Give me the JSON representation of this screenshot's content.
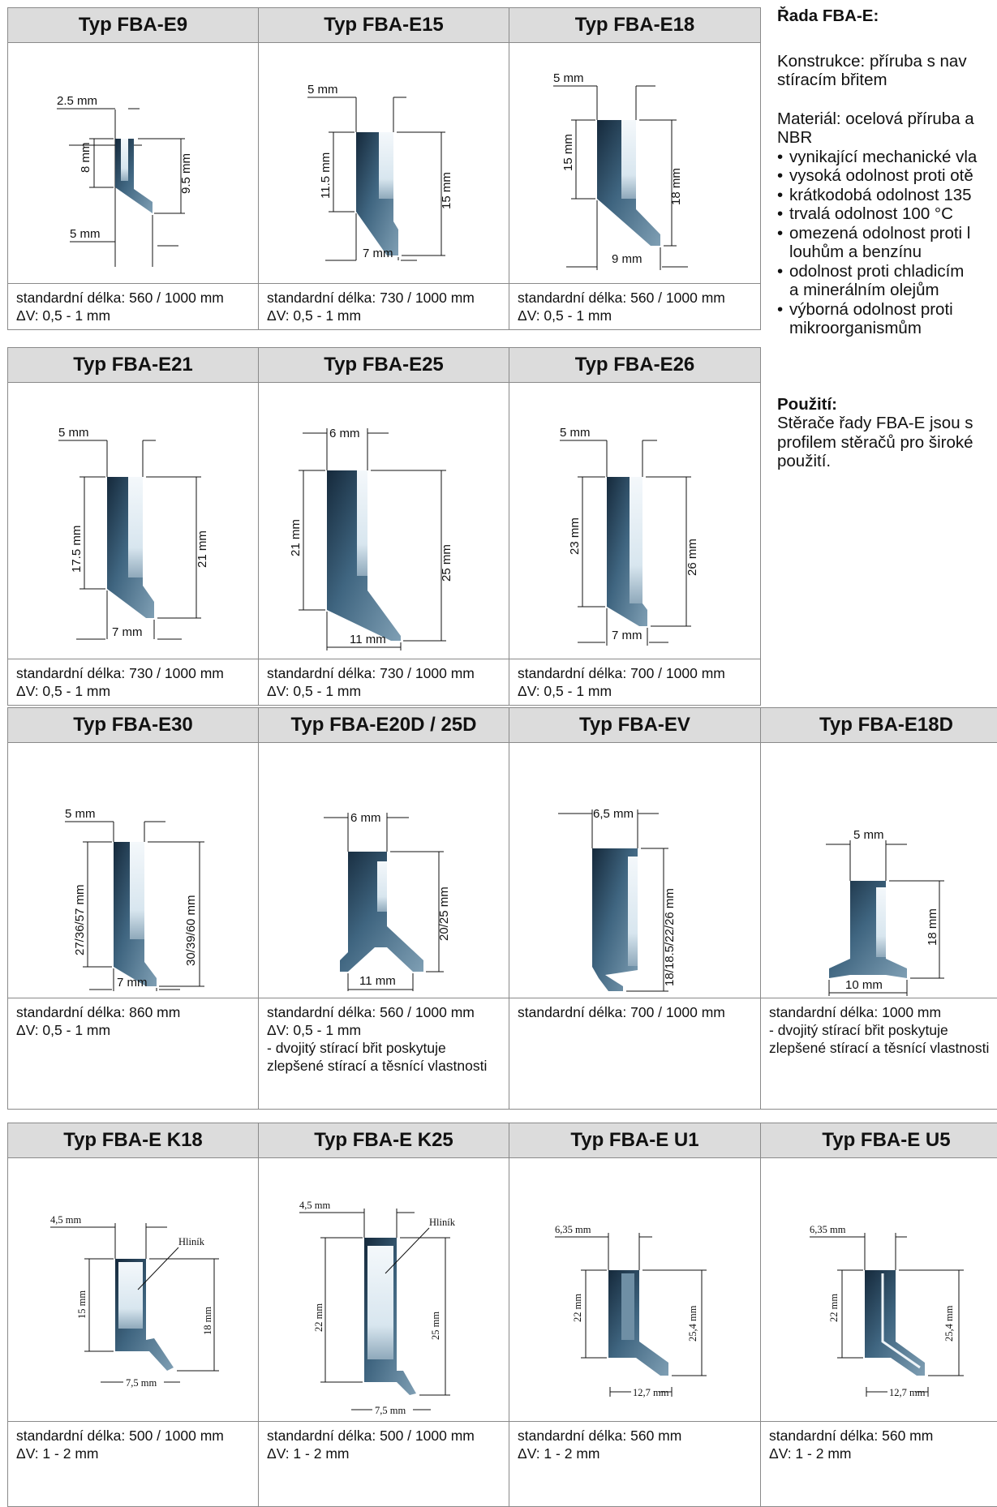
{
  "sidebar": {
    "heading": "Řada FBA-E:",
    "construction": [
      "Konstrukce: příruba s nav",
      "stíracím břitem"
    ],
    "material": [
      "Materiál: ocelová příruba a",
      "NBR"
    ],
    "properties": [
      [
        "vynikající mechanické vla"
      ],
      [
        "vysoká odolnost proti otě"
      ],
      [
        "krátkodobá odolnost 135"
      ],
      [
        "trvalá odolnost 100 °C"
      ],
      [
        "omezená odolnost proti l",
        "louhům a benzínu"
      ],
      [
        "odolnost proti chladicím",
        "a minerálním olejům"
      ],
      [
        "výborná odolnost proti",
        "mikroorganismům"
      ]
    ],
    "usage_heading": "Použití:",
    "usage": [
      "Stěrače řady FBA-E jsou s",
      "profilem stěračů pro široké",
      "použití."
    ]
  },
  "cells": [
    {
      "name": "Typ FBA-E9",
      "length": "standardní délka: 560 / 1000 mm",
      "dv": "ΔV:  0,5 - 1 mm",
      "dims": {
        "top": "2.5 mm",
        "left": "8 mm",
        "right": "9.5 mm",
        "bottom": "5 mm"
      }
    },
    {
      "name": "Typ FBA-E15",
      "length": "standardní délka: 730 / 1000 mm",
      "dv": "ΔV:  0,5 - 1 mm",
      "dims": {
        "top": "5 mm",
        "left": "11.5 mm",
        "right": "15 mm",
        "bottom": "7 mm"
      }
    },
    {
      "name": "Typ FBA-E18",
      "length": "standardní délka: 560 / 1000 mm",
      "dv": "ΔV:  0,5 - 1 mm",
      "dims": {
        "top": "5 mm",
        "left": "15 mm",
        "right": "18 mm",
        "bottom": "9 mm"
      }
    },
    {
      "name": "Typ FBA-E21",
      "length": "standardní délka: 730 / 1000 mm",
      "dv": "ΔV:  0,5 - 1 mm",
      "dims": {
        "top": "5 mm",
        "left": "17.5 mm",
        "right": "21 mm",
        "bottom": "7 mm"
      }
    },
    {
      "name": "Typ FBA-E25",
      "length": "standardní délka: 730 / 1000 mm",
      "dv": "ΔV:  0,5 - 1 mm",
      "dims": {
        "top": "6 mm",
        "left": "21 mm",
        "right": "25 mm",
        "bottom": "11 mm"
      }
    },
    {
      "name": "Typ FBA-E26",
      "length": "standardní délka: 700 / 1000 mm",
      "dv": "ΔV:  0,5 - 1 mm",
      "dims": {
        "top": "5 mm",
        "left": "23 mm",
        "right": "26 mm",
        "bottom": "7 mm"
      }
    },
    {
      "name": "Typ FBA-E30",
      "length": "standardní délka: 860 mm",
      "dv": "ΔV:  0,5 - 1 mm",
      "dims": {
        "top": "5 mm",
        "left": "27/36/57 mm",
        "right": "30/39/60 mm",
        "bottom": "7 mm"
      }
    },
    {
      "name": "Typ FBA-E20D / 25D",
      "length": "standardní délka: 560 / 1000 mm",
      "dv": "ΔV:  0,5 - 1 mm",
      "note": "- dvojitý stírací břit poskytuje zlepšené stírací a těsnící vlastnosti",
      "dims": {
        "top": "6 mm",
        "right": "20/25 mm",
        "bottom": "11 mm"
      }
    },
    {
      "name": "Typ FBA-EV",
      "length": "standardní délka: 700 / 1000 mm",
      "dims": {
        "top": "6,5 mm",
        "right": "18/18.5/22/26 mm"
      }
    },
    {
      "name": "Typ FBA-E18D",
      "length": "standardní délka: 1000 mm",
      "note": "- dvojitý stírací břit poskytuje zlepšené stírací a těsnící vlastnosti",
      "dims": {
        "top": "5 mm",
        "right": "18 mm",
        "bottom": "10 mm"
      }
    },
    {
      "name": "Typ FBA-E K18",
      "length": "standardní délka: 500 / 1000 mm",
      "dv": "ΔV:  1 - 2 mm",
      "dims": {
        "top": "4,5 mm",
        "left": "15 mm",
        "right": "18 mm",
        "bottom": "7,5 mm",
        "material": "Hliník"
      }
    },
    {
      "name": "Typ FBA-E K25",
      "length": "standardní délka: 500 / 1000 mm",
      "dv": "ΔV:  1 - 2 mm",
      "dims": {
        "top": "4,5 mm",
        "left": "22 mm",
        "right": "25 mm",
        "bottom": "7,5 mm",
        "material": "Hliník"
      }
    },
    {
      "name": "Typ FBA-E U1",
      "length": "standardní délka: 560 mm",
      "dv": "ΔV:  1 - 2 mm",
      "dims": {
        "top": "6,35 mm",
        "left": "22 mm",
        "right": "25,4 mm",
        "bottom": "12,7 mm"
      }
    },
    {
      "name": "Typ FBA-E U5",
      "length": "standardní délka: 560 mm",
      "dv": "ΔV:  1 - 2 mm",
      "dims": {
        "top": "6,35 mm",
        "left": "22 mm",
        "right": "25,4 mm",
        "bottom": "12,7 mm"
      }
    }
  ],
  "colors": {
    "profile_dark": "#1f3a52",
    "profile_mid": "#3f6580",
    "profile_light": "#7597ad",
    "header_bg": "#dcdcdc",
    "border": "#8a8a8a"
  }
}
